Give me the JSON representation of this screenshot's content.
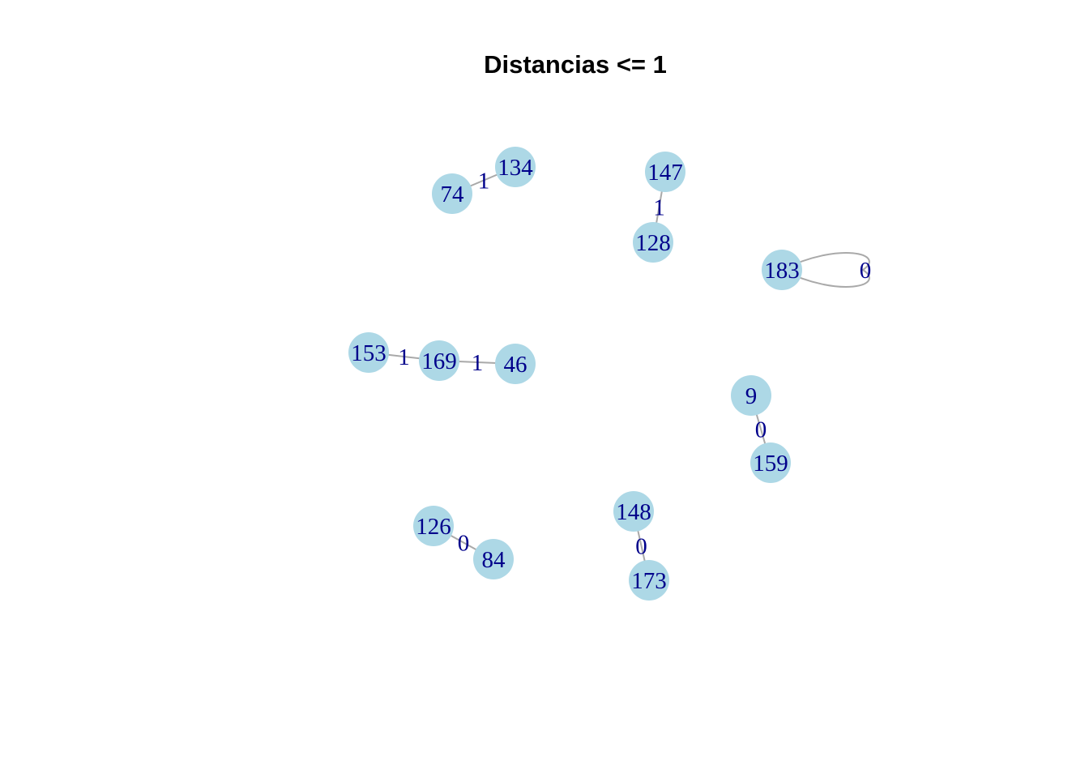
{
  "title": "Distancias <= 1",
  "colors": {
    "node_fill": "#add8e6",
    "node_label": "#00008b",
    "edge_stroke": "#a9a9a9",
    "edge_label": "#00008b",
    "background": "#ffffff"
  },
  "nodes": [
    {
      "id": "74",
      "label": "74"
    },
    {
      "id": "134",
      "label": "134"
    },
    {
      "id": "147",
      "label": "147"
    },
    {
      "id": "128",
      "label": "128"
    },
    {
      "id": "183",
      "label": "183"
    },
    {
      "id": "153",
      "label": "153"
    },
    {
      "id": "169",
      "label": "169"
    },
    {
      "id": "46",
      "label": "46"
    },
    {
      "id": "9",
      "label": "9"
    },
    {
      "id": "159",
      "label": "159"
    },
    {
      "id": "126",
      "label": "126"
    },
    {
      "id": "84",
      "label": "84"
    },
    {
      "id": "148",
      "label": "148"
    },
    {
      "id": "173",
      "label": "173"
    }
  ],
  "edges": [
    {
      "source": "74",
      "target": "134",
      "label": "1"
    },
    {
      "source": "147",
      "target": "128",
      "label": "1"
    },
    {
      "source": "183",
      "target": "183",
      "label": "0"
    },
    {
      "source": "153",
      "target": "169",
      "label": "1"
    },
    {
      "source": "169",
      "target": "46",
      "label": "1"
    },
    {
      "source": "9",
      "target": "159",
      "label": "0"
    },
    {
      "source": "126",
      "target": "84",
      "label": "0"
    },
    {
      "source": "148",
      "target": "173",
      "label": "0"
    }
  ]
}
